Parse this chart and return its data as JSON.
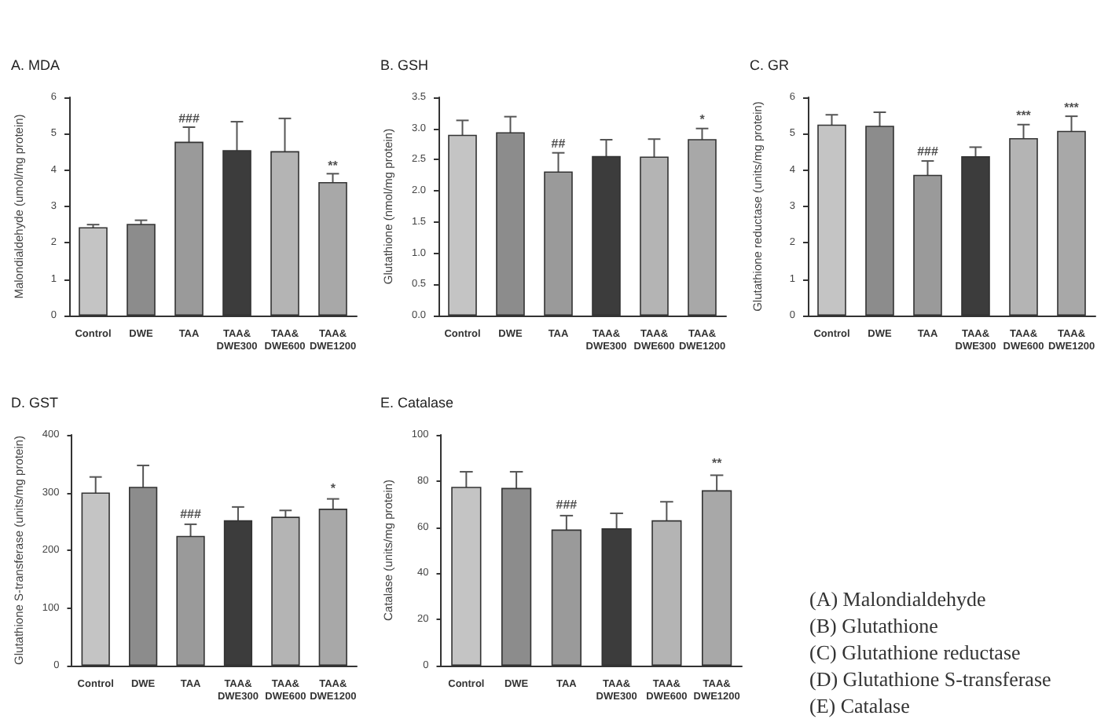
{
  "chart_data": [
    {
      "type": "bar",
      "title": "A. MDA",
      "ylabel": "Malondialdehyde (umol/mg protein)",
      "categories": [
        "Control",
        "DWE",
        "TAA",
        "TAA&\nDWE300",
        "TAA&\nDWE600",
        "TAA&\nDWE1200"
      ],
      "values": [
        2.43,
        2.52,
        4.78,
        4.55,
        4.52,
        3.67
      ],
      "errors": [
        0.07,
        0.1,
        0.4,
        0.78,
        0.9,
        0.23
      ],
      "colors": [
        "#c4c4c4",
        "#8c8c8c",
        "#9a9a9a",
        "#3c3c3c",
        "#b4b4b4",
        "#a8a8a8"
      ],
      "ylim": [
        0,
        6
      ],
      "yticks": [
        0,
        1,
        2,
        3,
        4,
        5,
        6
      ],
      "annotations": [
        {
          "text": "###",
          "x": "TAA",
          "y": 5.25
        },
        {
          "text": "**",
          "x": "TAA&\nDWE1200",
          "y": 3.95
        }
      ]
    },
    {
      "type": "bar",
      "title": "B. GSH",
      "ylabel": "Glutathione (nmol/mg protein)",
      "categories": [
        "Control",
        "DWE",
        "TAA",
        "TAA&\nDWE300",
        "TAA&\nDWE600",
        "TAA&\nDWE1200"
      ],
      "values": [
        2.9,
        2.94,
        2.31,
        2.56,
        2.55,
        2.83
      ],
      "errors": [
        0.23,
        0.25,
        0.3,
        0.26,
        0.28,
        0.17
      ],
      "colors": [
        "#c4c4c4",
        "#8c8c8c",
        "#9a9a9a",
        "#3c3c3c",
        "#b4b4b4",
        "#a8a8a8"
      ],
      "ylim": [
        0,
        3.5
      ],
      "yticks": [
        {
          "value": 0,
          "label": "0.0"
        },
        0.5,
        {
          "value": 1,
          "label": "1.0"
        },
        1.5,
        {
          "value": 2,
          "label": "2.0"
        },
        2.5,
        {
          "value": 3,
          "label": "3.0"
        },
        3.5
      ],
      "annotations": [
        {
          "text": "##",
          "x": "TAA",
          "y": 2.66
        },
        {
          "text": "*",
          "x": "TAA&\nDWE1200",
          "y": 3.05
        }
      ]
    },
    {
      "type": "bar",
      "title": "C. GR",
      "ylabel": "Glutathione reductase (units/mg protein)",
      "categories": [
        "Control",
        "DWE",
        "TAA",
        "TAA&\nDWE300",
        "TAA&\nDWE600",
        "TAA&\nDWE1200"
      ],
      "values": [
        5.25,
        5.22,
        3.87,
        4.38,
        4.88,
        5.08
      ],
      "errors": [
        0.27,
        0.37,
        0.38,
        0.25,
        0.37,
        0.4
      ],
      "colors": [
        "#c4c4c4",
        "#8c8c8c",
        "#9a9a9a",
        "#3c3c3c",
        "#b4b4b4",
        "#a8a8a8"
      ],
      "ylim": [
        0,
        6
      ],
      "yticks": [
        0,
        1,
        2,
        3,
        4,
        5,
        6
      ],
      "annotations": [
        {
          "text": "###",
          "x": "TAA",
          "y": 4.33
        },
        {
          "text": "***",
          "x": "TAA&\nDWE600",
          "y": 5.33
        },
        {
          "text": "***",
          "x": "TAA&\nDWE1200",
          "y": 5.55
        }
      ]
    },
    {
      "type": "bar",
      "title": "D. GST",
      "ylabel": "Glutathione S-transferase (units/mg protein)",
      "categories": [
        "Control",
        "DWE",
        "TAA",
        "TAA&\nDWE300",
        "TAA&\nDWE600",
        "TAA&\nDWE1200"
      ],
      "values": [
        300,
        310,
        225,
        252,
        258,
        272
      ],
      "errors": [
        27,
        37,
        20,
        23,
        11,
        17
      ],
      "colors": [
        "#c4c4c4",
        "#8c8c8c",
        "#9a9a9a",
        "#3c3c3c",
        "#b4b4b4",
        "#a8a8a8"
      ],
      "ylim": [
        0,
        400
      ],
      "yticks": [
        0,
        100,
        200,
        300,
        400
      ],
      "annotations": [
        {
          "text": "###",
          "x": "TAA",
          "y": 252
        },
        {
          "text": "*",
          "x": "TAA&\nDWE1200",
          "y": 297
        }
      ]
    },
    {
      "type": "bar",
      "title": "E. Catalase",
      "ylabel": "Catalase (units/mg protein)",
      "categories": [
        "Control",
        "DWE",
        "TAA",
        "TAA&\nDWE300",
        "TAA&\nDWE600",
        "TAA&\nDWE1200"
      ],
      "values": [
        77.5,
        77,
        59,
        59.5,
        63,
        76
      ],
      "errors": [
        6.5,
        7,
        6,
        6.5,
        8,
        6.5
      ],
      "colors": [
        "#c4c4c4",
        "#8c8c8c",
        "#9a9a9a",
        "#3c3c3c",
        "#b4b4b4",
        "#a8a8a8"
      ],
      "ylim": [
        0,
        100
      ],
      "yticks": [
        0,
        20,
        40,
        60,
        80,
        100
      ],
      "annotations": [
        {
          "text": "###",
          "x": "TAA",
          "y": 67
        },
        {
          "text": "**",
          "x": "TAA&\nDWE1200",
          "y": 85
        }
      ]
    },
    {
      "type": "other",
      "annotations": [
        "(A) Malondialdehyde",
        "(B) Glutathione",
        "(C) Glutathione reductase",
        "(D) Glutathione S-transferase",
        "(E) Catalase"
      ]
    }
  ]
}
